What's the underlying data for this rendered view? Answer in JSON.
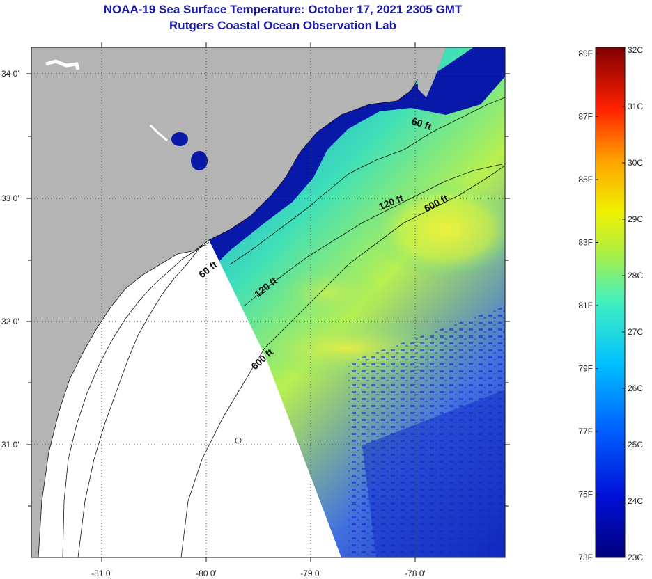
{
  "title": "NOAA-19 Sea Surface Temperature:  October 17, 2021 2305 GMT",
  "subtitle": "Rutgers Coastal Ocean Observation Lab",
  "map": {
    "lon_ticks": [
      "-81 0'",
      "-80 0'",
      "-79 0'",
      "-78 0'"
    ],
    "lat_ticks": [
      "34 0'",
      "33 0'",
      "32 0'",
      "31 0'"
    ],
    "contours": [
      {
        "label": "60 ft",
        "depth_ft": 60
      },
      {
        "label": "60 ft",
        "depth_ft": 60
      },
      {
        "label": "120 ft",
        "depth_ft": 120
      },
      {
        "label": "120 ft",
        "depth_ft": 120
      },
      {
        "label": "600 ft",
        "depth_ft": 600
      },
      {
        "label": "600 ft",
        "depth_ft": 600
      }
    ],
    "colors": {
      "land": "#b4b4b4",
      "nodata": "#ffffff",
      "grid": "#444444"
    }
  },
  "colorbar": {
    "fahrenheit": [
      "89F",
      "87F",
      "85F",
      "83F",
      "81F",
      "79F",
      "77F",
      "75F",
      "73F"
    ],
    "celsius": [
      "32C",
      "31C",
      "30C",
      "29C",
      "28C",
      "27C",
      "26C",
      "25C",
      "24C",
      "23C"
    ],
    "range_c": [
      23,
      32
    ]
  }
}
